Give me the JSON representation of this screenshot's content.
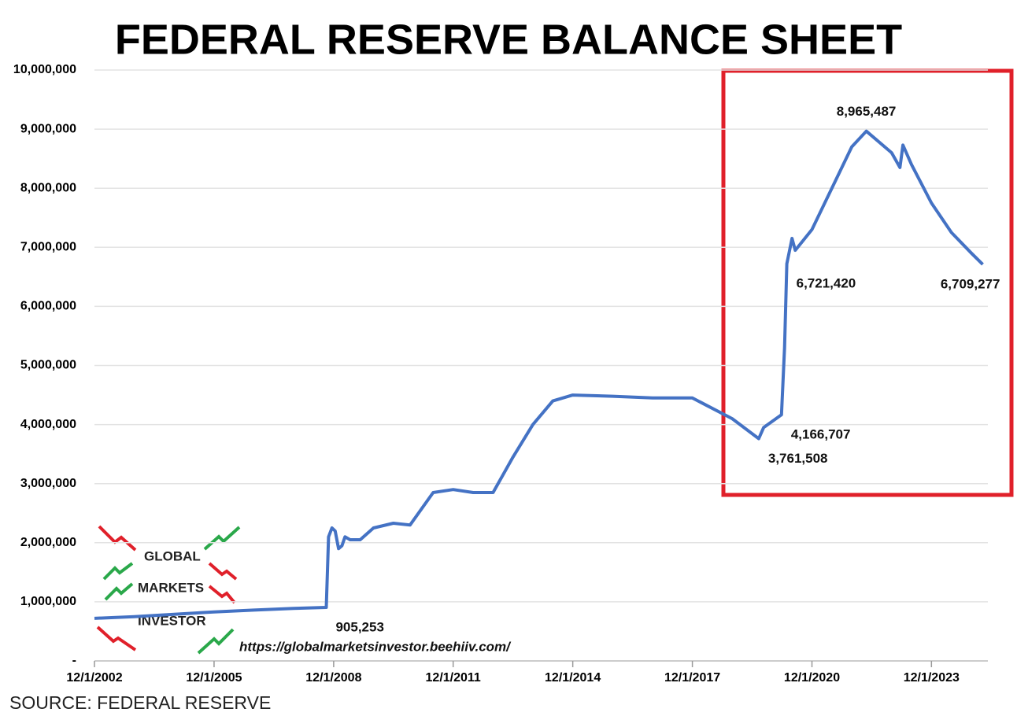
{
  "chart_data": {
    "type": "line",
    "title": "FEDERAL RESERVE BALANCE SHEET",
    "source": "SOURCE: FEDERAL RESERVE",
    "x": [
      "12/1/2002",
      "12/1/2003",
      "12/1/2004",
      "12/1/2005",
      "12/1/2006",
      "12/1/2007",
      "9/24/2008",
      "10/15/2008",
      "11/15/2008",
      "12/15/2008",
      "1/15/2009",
      "2/15/2009",
      "3/15/2009",
      "5/1/2009",
      "8/1/2009",
      "12/1/2009",
      "6/1/2010",
      "11/1/2010",
      "6/1/2011",
      "12/1/2011",
      "6/1/2012",
      "12/1/2012",
      "6/1/2013",
      "12/1/2013",
      "6/1/2014",
      "12/1/2014",
      "12/1/2015",
      "12/1/2016",
      "12/1/2017",
      "12/1/2018",
      "8/1/2019",
      "9/15/2019",
      "2/26/2020",
      "3/25/2020",
      "4/15/2020",
      "6/1/2020",
      "7/1/2020",
      "12/1/2020",
      "6/1/2021",
      "12/1/2021",
      "4/13/2022",
      "12/1/2022",
      "2/15/2023",
      "3/15/2023",
      "6/1/2023",
      "12/1/2023",
      "6/1/2024",
      "12/1/2024",
      "3/15/2025"
    ],
    "series": [
      {
        "name": "Balance sheet",
        "color": "#4472c4",
        "values": [
          720000,
          750000,
          790000,
          830000,
          860000,
          890000,
          905253,
          2100000,
          2250000,
          2200000,
          1900000,
          1950000,
          2100000,
          2050000,
          2050000,
          2250000,
          2330000,
          2300000,
          2850000,
          2900000,
          2850000,
          2850000,
          3450000,
          4000000,
          4400000,
          4500000,
          4480000,
          4450000,
          4450000,
          4100000,
          3761508,
          3950000,
          4166707,
          5300000,
          6721420,
          7150000,
          6950000,
          7300000,
          8000000,
          8700000,
          8965487,
          8600000,
          8350000,
          8730000,
          8400000,
          7750000,
          7250000,
          6900000,
          6709277
        ],
        "value_labels": [
          null,
          null,
          null,
          null,
          null,
          null,
          "905,253",
          null,
          null,
          null,
          null,
          null,
          null,
          null,
          null,
          null,
          null,
          null,
          null,
          null,
          null,
          null,
          null,
          null,
          null,
          null,
          null,
          null,
          null,
          null,
          "3,761,508",
          null,
          "4,166,707",
          null,
          "6,721,420",
          null,
          null,
          null,
          null,
          null,
          "8,965,487",
          null,
          null,
          null,
          null,
          null,
          null,
          null,
          "6,709,277"
        ]
      }
    ],
    "xlim": [
      "12/1/2002",
      "5/1/2025"
    ],
    "xticks": [
      "12/1/2002",
      "12/1/2005",
      "12/1/2008",
      "12/1/2011",
      "12/1/2014",
      "12/1/2017",
      "12/1/2020",
      "12/1/2023"
    ],
    "ylim": [
      0,
      10000000
    ],
    "yticks": [
      {
        "value": 0,
        "label": "-"
      },
      {
        "value": 1000000,
        "label": "1,000,000"
      },
      {
        "value": 2000000,
        "label": "2,000,000"
      },
      {
        "value": 3000000,
        "label": "3,000,000"
      },
      {
        "value": 4000000,
        "label": "4,000,000"
      },
      {
        "value": 5000000,
        "label": "5,000,000"
      },
      {
        "value": 6000000,
        "label": "6,000,000"
      },
      {
        "value": 7000000,
        "label": "7,000,000"
      },
      {
        "value": 8000000,
        "label": "8,000,000"
      },
      {
        "value": 9000000,
        "label": "9,000,000"
      },
      {
        "value": 10000000,
        "label": "10,000,000"
      }
    ],
    "grid": true
  },
  "watermark": {
    "lines": [
      "GLOBAL",
      "MARKETS",
      "INVESTOR"
    ],
    "url": "https://globalmarketsinvestor.beehiiv.com/"
  }
}
